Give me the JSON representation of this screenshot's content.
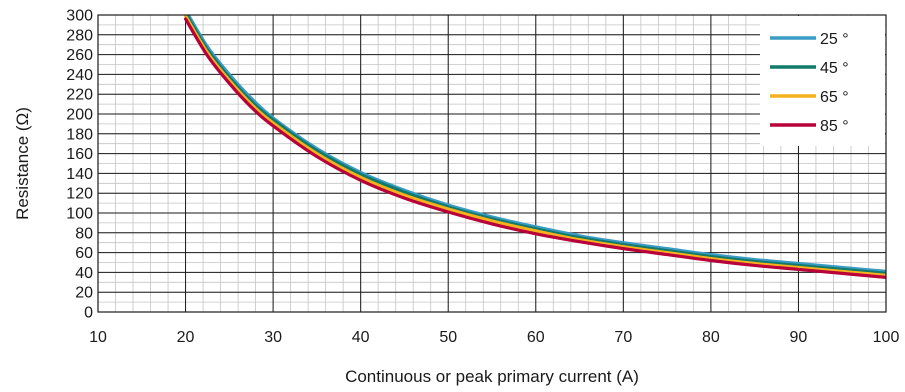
{
  "chart_data": {
    "type": "line",
    "title": "",
    "xlabel": "Continuous or peak primary current (A)",
    "ylabel": "Resistance (Ω)",
    "xlim": [
      10,
      100
    ],
    "ylim": [
      0,
      300
    ],
    "xticks": [
      10,
      20,
      30,
      40,
      50,
      60,
      70,
      80,
      90,
      100
    ],
    "yticks": [
      0,
      20,
      40,
      60,
      80,
      100,
      120,
      140,
      160,
      180,
      200,
      220,
      240,
      260,
      280,
      300
    ],
    "grid": true,
    "legend_position": "top-right",
    "x": [
      20,
      22.5,
      25,
      27.5,
      30,
      35,
      40,
      45,
      50,
      55,
      60,
      65,
      70,
      75,
      80,
      85,
      90,
      95,
      100
    ],
    "series": [
      {
        "name": "25 °",
        "color": "#3a9bc4",
        "values": [
          305,
          268,
          240,
          216,
          196,
          165,
          141,
          123,
          108,
          96,
          86,
          77,
          70,
          64,
          58,
          53,
          49,
          45,
          41
        ]
      },
      {
        "name": "45 °",
        "color": "#117a6a",
        "values": [
          302,
          265,
          237,
          213,
          194,
          163,
          139,
          121,
          106,
          94,
          84,
          75,
          68,
          62,
          56,
          51,
          47,
          43,
          39
        ]
      },
      {
        "name": "65 °",
        "color": "#f5b21c",
        "values": [
          299,
          262,
          234,
          210,
          191,
          160,
          136,
          118,
          104,
          92,
          82,
          73,
          66,
          60,
          54,
          49,
          45,
          41,
          37
        ]
      },
      {
        "name": "85 °",
        "color": "#b8003a",
        "values": [
          296,
          259,
          231,
          207,
          188,
          157,
          133,
          115,
          101,
          89,
          79,
          71,
          64,
          58,
          52,
          47,
          43,
          39,
          35
        ]
      }
    ]
  }
}
